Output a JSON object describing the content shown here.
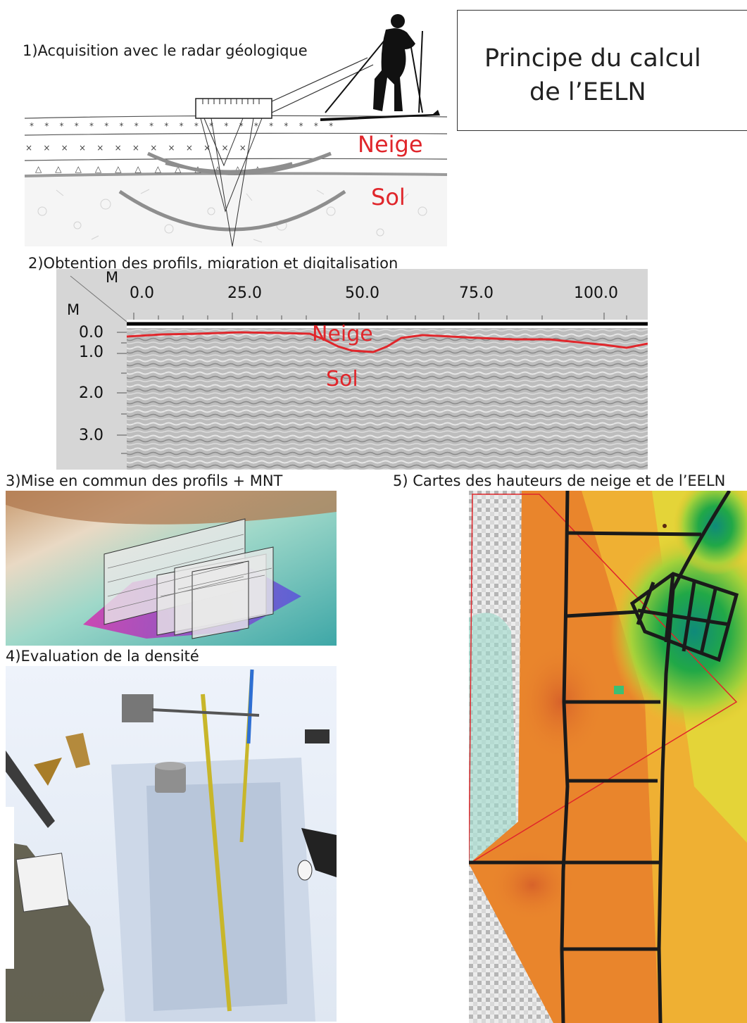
{
  "title": {
    "line1": "Principe du calcul",
    "line2": "de l’EELN"
  },
  "steps": {
    "s1": "1)Acquisition avec le radar géologique",
    "s2": "2)Obtention des profils, migration et digitalisation",
    "s3": "3)Mise en commun des profils + MNT",
    "s4": "4)Evaluation de la densité",
    "s5": "5) Cartes des hauteurs de neige et de l’EELN"
  },
  "panel1": {
    "neige": "Neige",
    "sol": "Sol"
  },
  "radargram": {
    "x_axis_unit": "M",
    "y_axis_unit": "M",
    "x_ticks": [
      "0.0",
      "25.0",
      "50.0",
      "75.0",
      "100.0"
    ],
    "y_ticks": [
      "0.0",
      "1.0",
      "2.0",
      "3.0"
    ],
    "neige": "Neige",
    "sol": "Sol"
  },
  "colors": {
    "red": "#e0262b",
    "orange": "#e9822a",
    "yellow": "#e8d23a",
    "green": "#22a34a",
    "teal": "#2aa99b"
  }
}
